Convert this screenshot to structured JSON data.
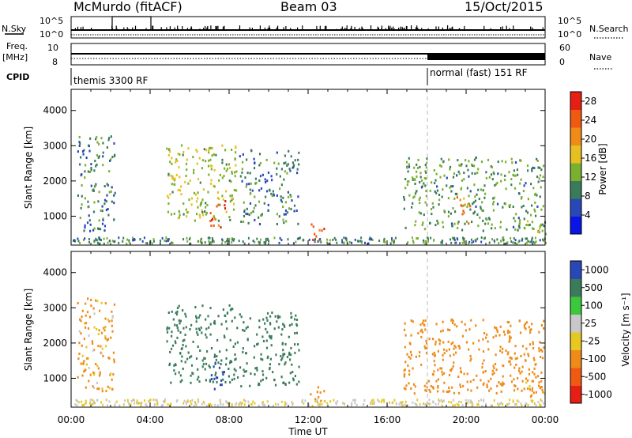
{
  "header": {
    "station": "McMurdo (fitACF)",
    "beam": "Beam 03",
    "date": "15/Oct/2015"
  },
  "side_labels": {
    "nsky": "N.Sky",
    "freq": "Freq.",
    "freq_unit": "[MHz]",
    "cpid": "CPID",
    "nsearch": "N.Search",
    "nave": "Nave"
  },
  "top_panel": {
    "left_ticks": [
      "10^5",
      "10^0"
    ],
    "right_ticks": [
      "10^5",
      "10^0"
    ],
    "freq_ticks": [
      "10",
      "8"
    ],
    "nave_ticks": [
      "60",
      "0"
    ]
  },
  "cpid_labels": {
    "left": "themis 3300 RF",
    "right": "normal (fast) 151 RF"
  },
  "colors": {
    "power_scale": [
      "#0a14e6",
      "#2848b8",
      "#3a7c5a",
      "#7ab030",
      "#e6c020",
      "#f08a18",
      "#f05a10",
      "#e61e14"
    ],
    "velocity_scale": [
      "#e61e14",
      "#f05a10",
      "#f08a18",
      "#e6c820",
      "#c8c8c8",
      "#3cc83c",
      "#3a7c5a",
      "#2848b8"
    ]
  },
  "chart_data": [
    {
      "type": "heatmap",
      "panel": "power",
      "ylabel": "Slant Range [km]",
      "ylim": [
        180,
        4600
      ],
      "yticks": [
        "1000",
        "2000",
        "3000",
        "4000"
      ],
      "xlim_hours": [
        0,
        24
      ],
      "xticks": [
        "00:00",
        "04:00",
        "08:00",
        "12:00",
        "16:00",
        "20:00",
        "00:00"
      ],
      "colorbar": {
        "label": "Power [dB]",
        "ticks": [
          "4",
          "8",
          "12",
          "16",
          "20",
          "24",
          "28"
        ],
        "range": [
          0,
          30
        ]
      },
      "echo_regions": [
        {
          "t0": 0.3,
          "t1": 2.2,
          "r0": 600,
          "r1": 3300,
          "value": 9
        },
        {
          "t0": 4.8,
          "t1": 8.4,
          "r0": 900,
          "r1": 3100,
          "value": 14
        },
        {
          "t0": 7.0,
          "t1": 7.8,
          "r0": 700,
          "r1": 1500,
          "value": 26
        },
        {
          "t0": 8.5,
          "t1": 11.5,
          "r0": 800,
          "r1": 2900,
          "value": 9
        },
        {
          "t0": 12.0,
          "t1": 12.8,
          "r0": 300,
          "r1": 800,
          "value": 24
        },
        {
          "t0": 16.8,
          "t1": 23.9,
          "r0": 600,
          "r1": 2700,
          "value": 11
        },
        {
          "t0": 19.5,
          "t1": 20.2,
          "r0": 800,
          "r1": 1600,
          "value": 22
        },
        {
          "t0": 23.0,
          "t1": 24.0,
          "r0": 500,
          "r1": 1000,
          "value": 14
        }
      ]
    },
    {
      "type": "heatmap",
      "panel": "velocity",
      "ylabel": "Slant Range [km]",
      "ylim": [
        180,
        4600
      ],
      "yticks": [
        "1000",
        "2000",
        "3000",
        "4000"
      ],
      "xlim_hours": [
        0,
        24
      ],
      "xticks": [
        "00:00",
        "04:00",
        "08:00",
        "12:00",
        "16:00",
        "20:00",
        "00:00"
      ],
      "xlabel": "Time UT",
      "colorbar": {
        "label": "Velocity [m s⁻¹]",
        "ticks": [
          "1000",
          "500",
          "100",
          "25",
          "-25",
          "-100",
          "-500",
          "-1000"
        ]
      },
      "echo_regions": [
        {
          "t0": 0.3,
          "t1": 2.2,
          "r0": 600,
          "r1": 3300,
          "value": -150
        },
        {
          "t0": 4.8,
          "t1": 8.4,
          "r0": 900,
          "r1": 3100,
          "value": 300
        },
        {
          "t0": 7.0,
          "t1": 7.8,
          "r0": 700,
          "r1": 1500,
          "value": 800
        },
        {
          "t0": 8.5,
          "t1": 11.5,
          "r0": 800,
          "r1": 2900,
          "value": 250
        },
        {
          "t0": 12.0,
          "t1": 12.8,
          "r0": 300,
          "r1": 800,
          "value": -300
        },
        {
          "t0": 16.8,
          "t1": 23.9,
          "r0": 600,
          "r1": 2700,
          "value": -350
        },
        {
          "t0": 23.0,
          "t1": 24.0,
          "r0": 500,
          "r1": 1000,
          "value": -200
        }
      ]
    }
  ]
}
